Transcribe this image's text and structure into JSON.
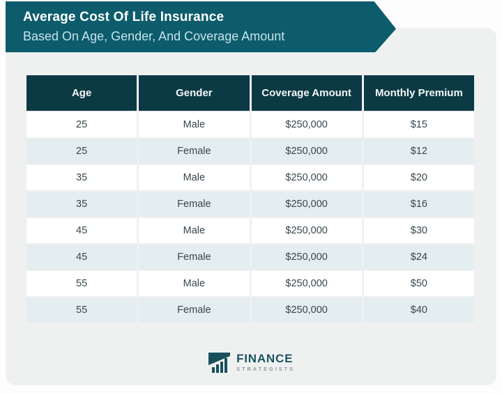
{
  "banner": {
    "title": "Average Cost Of Life Insurance",
    "subtitle": "Based On Age, Gender, And Coverage Amount"
  },
  "chart_data": {
    "type": "table",
    "title": "Average Cost Of Life Insurance",
    "subtitle": "Based On Age, Gender, And Coverage Amount",
    "columns": [
      "Age",
      "Gender",
      "Coverage Amount",
      "Monthly Premium"
    ],
    "rows": [
      [
        "25",
        "Male",
        "$250,000",
        "$15"
      ],
      [
        "25",
        "Female",
        "$250,000",
        "$12"
      ],
      [
        "35",
        "Male",
        "$250,000",
        "$20"
      ],
      [
        "35",
        "Female",
        "$250,000",
        "$16"
      ],
      [
        "45",
        "Male",
        "$250,000",
        "$30"
      ],
      [
        "45",
        "Female",
        "$250,000",
        "$24"
      ],
      [
        "55",
        "Male",
        "$250,000",
        "$50"
      ],
      [
        "55",
        "Female",
        "$250,000",
        "$40"
      ]
    ],
    "layout": {
      "header_style": "dark-teal-solid",
      "row_striping": "white-and-light-blue-alternating",
      "grid": "thin light gaps between cells"
    }
  },
  "footer": {
    "logo_text": "FINANCE",
    "logo_subtext": "STRATEGISTS",
    "logo_icon": "ascending-bar-chart-logo"
  },
  "colors": {
    "banner": "#0d5c6c",
    "table-header": "#0c3a44",
    "row": "#ffffff",
    "row-alt": "#e4edf0",
    "card": "#eff1f1",
    "subtitle-text": "#c5e3e9",
    "cell-text": "#37474e",
    "logo-teal": "#1b5560",
    "logo-gray": "#8a9ba1"
  }
}
